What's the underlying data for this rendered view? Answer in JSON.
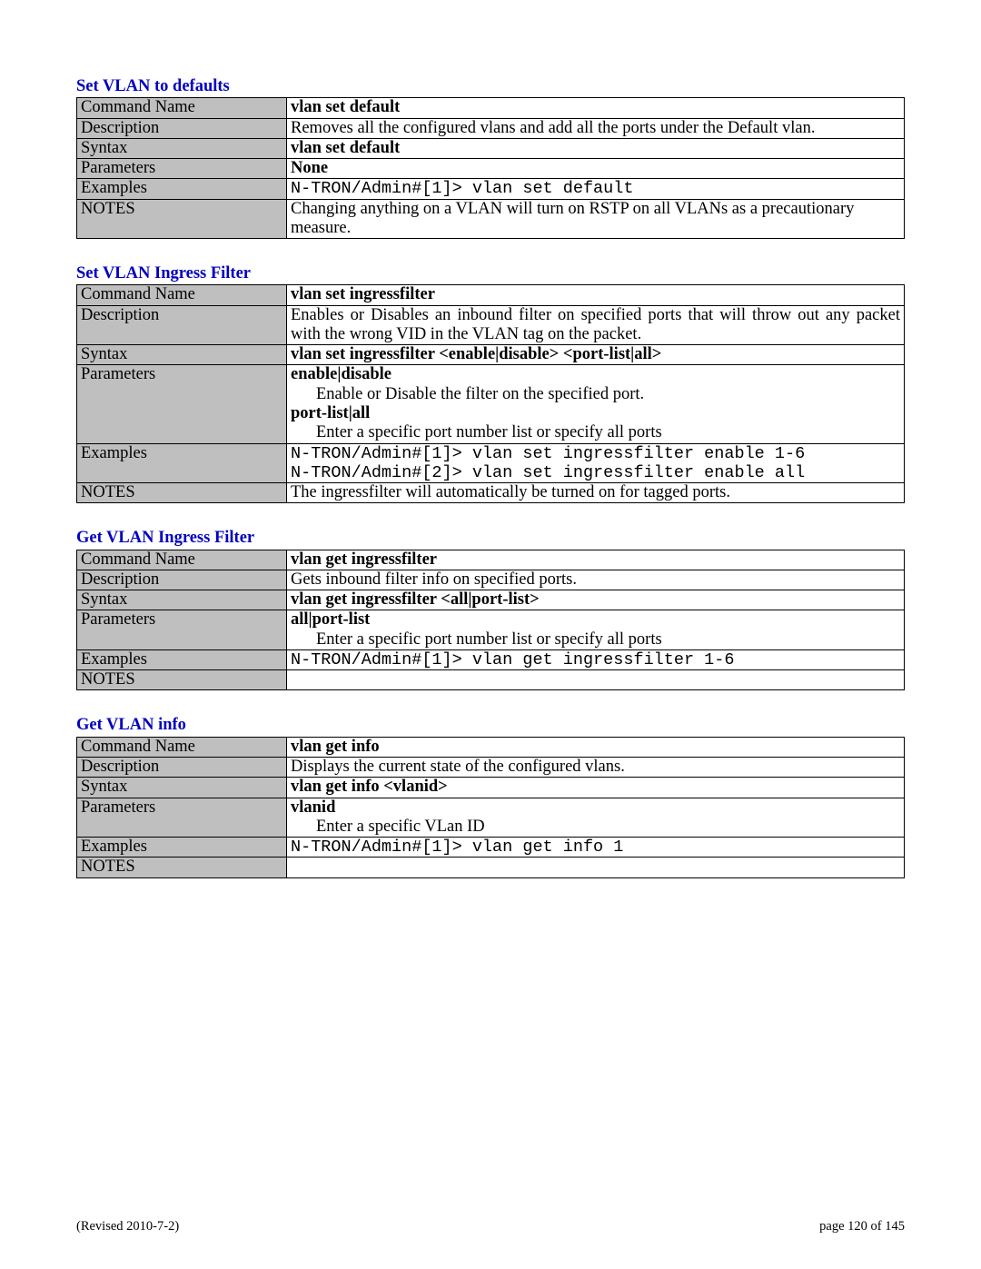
{
  "row_labels": {
    "command_name": "Command Name",
    "description": "Description",
    "syntax": "Syntax",
    "parameters": "Parameters",
    "examples": "Examples",
    "notes": "NOTES"
  },
  "sections": [
    {
      "title": "Set VLAN to defaults",
      "command_name": "vlan set default",
      "description": "Removes all the configured vlans and add all the ports under the Default vlan.",
      "description_justify": true,
      "syntax": "vlan set default",
      "parameters": [
        {
          "head": "None"
        }
      ],
      "examples": [
        "N-TRON/Admin#[1]> vlan set default"
      ],
      "notes": "Changing anything on a VLAN will turn on RSTP on all VLANs as a precautionary measure."
    },
    {
      "title": "Set VLAN Ingress Filter",
      "command_name": "vlan set ingressfilter",
      "description": "Enables or Disables an inbound filter on specified ports that will throw out any packet with the wrong VID in the VLAN tag on the packet.",
      "description_justify": true,
      "syntax": "vlan set ingressfilter <enable|disable> <port-list|all>",
      "parameters": [
        {
          "head": "enable|disable",
          "body": "Enable or Disable the filter on the specified port."
        },
        {
          "head": "port-list|all",
          "body": "Enter a specific port number list or specify all ports"
        }
      ],
      "examples": [
        "N-TRON/Admin#[1]> vlan set ingressfilter enable 1-6",
        "N-TRON/Admin#[2]> vlan set ingressfilter enable all"
      ],
      "notes": "The ingressfilter will automatically be turned on for tagged ports."
    },
    {
      "title": "Get VLAN Ingress Filter",
      "command_name": "vlan get ingressfilter",
      "description": "Gets inbound filter info on specified ports.",
      "description_justify": false,
      "syntax": "vlan get ingressfilter <all|port-list>",
      "parameters": [
        {
          "head": "all|port-list",
          "body": "Enter a specific port number list or specify all ports"
        }
      ],
      "examples": [
        "N-TRON/Admin#[1]> vlan get ingressfilter 1-6"
      ],
      "notes": ""
    },
    {
      "title": "Get VLAN info",
      "command_name": "vlan get info",
      "description": "Displays the current state of the configured vlans.",
      "description_justify": false,
      "syntax": "vlan get info <vlanid>",
      "parameters": [
        {
          "head": "vlanid",
          "body": "Enter a specific VLan ID"
        }
      ],
      "examples": [
        "N-TRON/Admin#[1]> vlan get info 1"
      ],
      "notes": ""
    }
  ],
  "footer": {
    "left": "(Revised 2010-7-2)",
    "right": "page 120 of 145"
  }
}
